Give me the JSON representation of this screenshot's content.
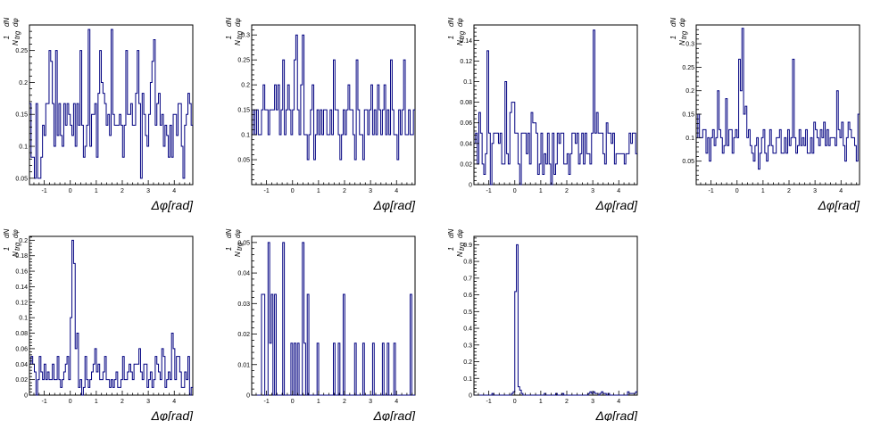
{
  "page": {
    "background": "#ffffff"
  },
  "style": {
    "line_color": "#000080",
    "axis_color": "#000000"
  },
  "axis_text": {
    "x_title": "Δφ[rad]",
    "y_one": "1",
    "y_dN": "dN",
    "y_N": "N",
    "y_trg": "trg",
    "y_dphi": "dφ"
  },
  "chart_data": [
    {
      "type": "histogram",
      "xlim": [
        -1.5708,
        4.7124
      ],
      "ylim": [
        0.04,
        0.29
      ],
      "xticks": [
        -1,
        0,
        1,
        2,
        3,
        4
      ],
      "yticks": [
        0.05,
        0.1,
        0.15,
        0.2,
        0.25
      ],
      "ytick_labels": [
        "0.05",
        "0.1",
        "0.15",
        "0.2",
        "0.25"
      ],
      "grid": false,
      "values": [
        0.167,
        0.083,
        0.083,
        0.05,
        0.167,
        0.05,
        0.05,
        0.083,
        0.133,
        0.117,
        0.167,
        0.167,
        0.25,
        0.233,
        0.167,
        0.1,
        0.25,
        0.117,
        0.167,
        0.117,
        0.1,
        0.167,
        0.133,
        0.167,
        0.15,
        0.133,
        0.117,
        0.167,
        0.1,
        0.167,
        0.133,
        0.25,
        0.133,
        0.083,
        0.1,
        0.133,
        0.283,
        0.1,
        0.15,
        0.15,
        0.167,
        0.083,
        0.183,
        0.25,
        0.2,
        0.183,
        0.167,
        0.133,
        0.15,
        0.117,
        0.283,
        0.15,
        0.133,
        0.133,
        0.133,
        0.15,
        0.133,
        0.083,
        0.133,
        0.25,
        0.15,
        0.15,
        0.167,
        0.133,
        0.133,
        0.183,
        0.25,
        0.167,
        0.05,
        0.183,
        0.15,
        0.117,
        0.1,
        0.15,
        0.2,
        0.233,
        0.267,
        0.133,
        0.167,
        0.183,
        0.133,
        0.15,
        0.1,
        0.133,
        0.117,
        0.083,
        0.133,
        0.083,
        0.15,
        0.15,
        0.117,
        0.167,
        0.167,
        0.1,
        0.05,
        0.133,
        0.15,
        0.183,
        0.167,
        0.133
      ]
    },
    {
      "type": "histogram",
      "xlim": [
        -1.5708,
        4.7124
      ],
      "ylim": [
        0.0,
        0.32
      ],
      "xticks": [
        -1,
        0,
        1,
        2,
        3,
        4
      ],
      "yticks": [
        0.05,
        0.1,
        0.15,
        0.2,
        0.25,
        0.3
      ],
      "ytick_labels": [
        "0.05",
        "0.1",
        "0.15",
        "0.2",
        "0.25",
        "0.3"
      ],
      "grid": false,
      "values": [
        0.1,
        0.15,
        0.1,
        0.15,
        0.1,
        0.1,
        0.15,
        0.2,
        0.15,
        0.15,
        0.1,
        0.15,
        0.15,
        0.15,
        0.2,
        0.15,
        0.2,
        0.1,
        0.15,
        0.25,
        0.1,
        0.15,
        0.2,
        0.15,
        0.1,
        0.15,
        0.25,
        0.3,
        0.15,
        0.1,
        0.2,
        0.3,
        0.1,
        0.1,
        0.05,
        0.1,
        0.15,
        0.2,
        0.05,
        0.1,
        0.15,
        0.1,
        0.15,
        0.1,
        0.15,
        0.15,
        0.1,
        0.1,
        0.15,
        0.1,
        0.25,
        0.15,
        0.15,
        0.1,
        0.05,
        0.1,
        0.15,
        0.1,
        0.15,
        0.2,
        0.15,
        0.15,
        0.1,
        0.05,
        0.25,
        0.15,
        0.1,
        0.1,
        0.05,
        0.15,
        0.15,
        0.1,
        0.15,
        0.2,
        0.1,
        0.15,
        0.1,
        0.2,
        0.15,
        0.1,
        0.15,
        0.2,
        0.1,
        0.15,
        0.1,
        0.25,
        0.15,
        0.1,
        0.1,
        0.05,
        0.15,
        0.1,
        0.15,
        0.25,
        0.1,
        0.1,
        0.15,
        0.1,
        0.1,
        0.15
      ]
    },
    {
      "type": "histogram",
      "xlim": [
        -1.5708,
        4.7124
      ],
      "ylim": [
        0.0,
        0.155
      ],
      "xticks": [
        -1,
        0,
        1,
        2,
        3,
        4
      ],
      "yticks": [
        0,
        0.02,
        0.04,
        0.06,
        0.08,
        0.1,
        0.12,
        0.14
      ],
      "ytick_labels": [
        "0",
        "0.02",
        "0.04",
        "0.06",
        "0.08",
        "0.1",
        "0.12",
        "0.14"
      ],
      "grid": false,
      "values": [
        0.04,
        0.05,
        0.02,
        0.07,
        0.05,
        0.02,
        0.01,
        0.03,
        0.13,
        0.05,
        0.0,
        0.04,
        0.05,
        0.05,
        0.05,
        0.04,
        0.05,
        0.02,
        0.02,
        0.1,
        0.03,
        0.02,
        0.07,
        0.08,
        0.08,
        0.05,
        0.05,
        0.02,
        0.0,
        0.05,
        0.05,
        0.05,
        0.03,
        0.05,
        0.02,
        0.07,
        0.06,
        0.06,
        0.05,
        0.01,
        0.02,
        0.05,
        0.01,
        0.03,
        0.02,
        0.05,
        0.02,
        0.0,
        0.05,
        0.01,
        0.02,
        0.05,
        0.04,
        0.05,
        0.05,
        0.02,
        0.02,
        0.03,
        0.01,
        0.03,
        0.05,
        0.05,
        0.04,
        0.05,
        0.02,
        0.03,
        0.05,
        0.02,
        0.05,
        0.03,
        0.03,
        0.02,
        0.05,
        0.15,
        0.05,
        0.07,
        0.05,
        0.05,
        0.05,
        0.03,
        0.02,
        0.06,
        0.05,
        0.05,
        0.04,
        0.05,
        0.02,
        0.03,
        0.03,
        0.03,
        0.03,
        0.03,
        0.02,
        0.03,
        0.03,
        0.05,
        0.04,
        0.05,
        0.05,
        0.03
      ]
    },
    {
      "type": "histogram",
      "xlim": [
        -1.5708,
        4.7124
      ],
      "ylim": [
        0.0,
        0.34
      ],
      "xticks": [
        -1,
        0,
        1,
        2,
        3,
        4
      ],
      "yticks": [
        0.05,
        0.1,
        0.15,
        0.2,
        0.25,
        0.3
      ],
      "ytick_labels": [
        "0.05",
        "0.1",
        "0.15",
        "0.2",
        "0.25",
        "0.3"
      ],
      "grid": false,
      "values": [
        0.1,
        0.15,
        0.1,
        0.1,
        0.117,
        0.117,
        0.067,
        0.1,
        0.05,
        0.1,
        0.117,
        0.083,
        0.1,
        0.2,
        0.117,
        0.1,
        0.067,
        0.083,
        0.183,
        0.083,
        0.117,
        0.117,
        0.067,
        0.1,
        0.117,
        0.1,
        0.267,
        0.2,
        0.333,
        0.15,
        0.167,
        0.1,
        0.117,
        0.083,
        0.067,
        0.05,
        0.083,
        0.1,
        0.033,
        0.067,
        0.1,
        0.117,
        0.067,
        0.05,
        0.083,
        0.117,
        0.083,
        0.067,
        0.067,
        0.1,
        0.1,
        0.117,
        0.067,
        0.067,
        0.1,
        0.067,
        0.117,
        0.083,
        0.1,
        0.267,
        0.1,
        0.067,
        0.083,
        0.117,
        0.083,
        0.1,
        0.083,
        0.117,
        0.067,
        0.067,
        0.1,
        0.067,
        0.133,
        0.117,
        0.1,
        0.083,
        0.117,
        0.1,
        0.133,
        0.083,
        0.117,
        0.083,
        0.1,
        0.1,
        0.1,
        0.083,
        0.2,
        0.117,
        0.1,
        0.133,
        0.083,
        0.05,
        0.1,
        0.133,
        0.117,
        0.1,
        0.1,
        0.083,
        0.05,
        0.15
      ]
    },
    {
      "type": "histogram",
      "xlim": [
        -1.5708,
        4.7124
      ],
      "ylim": [
        0.0,
        0.205
      ],
      "xticks": [
        -1,
        0,
        1,
        2,
        3,
        4
      ],
      "yticks": [
        0,
        0.02,
        0.04,
        0.06,
        0.08,
        0.1,
        0.12,
        0.14,
        0.16,
        0.18,
        0.2
      ],
      "ytick_labels": [
        "0",
        "0.02",
        "0.04",
        "0.06",
        "0.08",
        "0.1",
        "0.12",
        "0.14",
        "0.16",
        "0.18",
        "0.2"
      ],
      "grid": false,
      "values": [
        0.04,
        0.05,
        0.04,
        0.03,
        0.0,
        0.02,
        0.05,
        0.03,
        0.02,
        0.04,
        0.02,
        0.03,
        0.02,
        0.02,
        0.04,
        0.02,
        0.02,
        0.05,
        0.02,
        0.01,
        0.02,
        0.03,
        0.04,
        0.05,
        0.02,
        0.1,
        0.2,
        0.17,
        0.06,
        0.08,
        0.01,
        0.02,
        0.0,
        0.01,
        0.05,
        0.02,
        0.01,
        0.02,
        0.03,
        0.04,
        0.06,
        0.03,
        0.04,
        0.02,
        0.02,
        0.03,
        0.05,
        0.02,
        0.02,
        0.01,
        0.02,
        0.01,
        0.02,
        0.03,
        0.01,
        0.01,
        0.02,
        0.05,
        0.02,
        0.02,
        0.03,
        0.04,
        0.03,
        0.02,
        0.04,
        0.04,
        0.04,
        0.06,
        0.03,
        0.02,
        0.04,
        0.04,
        0.01,
        0.02,
        0.03,
        0.01,
        0.02,
        0.05,
        0.04,
        0.03,
        0.02,
        0.06,
        0.05,
        0.01,
        0.02,
        0.03,
        0.02,
        0.08,
        0.06,
        0.02,
        0.05,
        0.05,
        0.03,
        0.01,
        0.01,
        0.03,
        0.02,
        0.05,
        0.0,
        0.01
      ]
    },
    {
      "type": "histogram",
      "xlim": [
        -1.5708,
        4.7124
      ],
      "ylim": [
        0.0,
        0.052
      ],
      "xticks": [
        -1,
        0,
        1,
        2,
        3,
        4
      ],
      "yticks": [
        0,
        0.01,
        0.02,
        0.03,
        0.04,
        0.05
      ],
      "ytick_labels": [
        "0",
        "0.01",
        "0.02",
        "0.03",
        "0.04",
        "0.05"
      ],
      "grid": false,
      "values": [
        0.0,
        0.0,
        0.0,
        0.0,
        0.0,
        0.0,
        0.033,
        0.033,
        0.0,
        0.0,
        0.05,
        0.017,
        0.033,
        0.0,
        0.033,
        0.0,
        0.0,
        0.0,
        0.0,
        0.05,
        0.0,
        0.0,
        0.0,
        0.0,
        0.017,
        0.0,
        0.017,
        0.0,
        0.017,
        0.0,
        0.0,
        0.05,
        0.017,
        0.0,
        0.033,
        0.0,
        0.0,
        0.0,
        0.0,
        0.0,
        0.017,
        0.0,
        0.0,
        0.0,
        0.0,
        0.0,
        0.0,
        0.0,
        0.0,
        0.0,
        0.017,
        0.0,
        0.0,
        0.017,
        0.0,
        0.0,
        0.033,
        0.0,
        0.0,
        0.0,
        0.0,
        0.0,
        0.0,
        0.017,
        0.0,
        0.0,
        0.0,
        0.0,
        0.017,
        0.0,
        0.0,
        0.0,
        0.0,
        0.0,
        0.017,
        0.0,
        0.0,
        0.0,
        0.0,
        0.0,
        0.017,
        0.0,
        0.0,
        0.017,
        0.0,
        0.0,
        0.0,
        0.017,
        0.0,
        0.0,
        0.0,
        0.0,
        0.0,
        0.0,
        0.0,
        0.0,
        0.0,
        0.033,
        0.0,
        0.0
      ]
    },
    {
      "type": "histogram",
      "xlim": [
        -1.5708,
        4.7124
      ],
      "ylim": [
        0.0,
        0.95
      ],
      "xticks": [
        -1,
        0,
        1,
        2,
        3,
        4
      ],
      "yticks": [
        0,
        0.1,
        0.2,
        0.3,
        0.4,
        0.5,
        0.6,
        0.7,
        0.8,
        0.9
      ],
      "ytick_labels": [
        "0",
        "0.1",
        "0.2",
        "0.3",
        "0.4",
        "0.5",
        "0.6",
        "0.7",
        "0.8",
        "0.9"
      ],
      "grid": false,
      "values": [
        0,
        0,
        0,
        0,
        0,
        0,
        0,
        0,
        0,
        0,
        0,
        0.01,
        0,
        0,
        0,
        0,
        0,
        0,
        0,
        0,
        0,
        0,
        0,
        0.01,
        0.02,
        0.62,
        0.9,
        0.05,
        0.03,
        0.01,
        0,
        0,
        0,
        0,
        0,
        0,
        0,
        0,
        0,
        0,
        0,
        0,
        0,
        0.01,
        0,
        0,
        0,
        0,
        0,
        0,
        0.01,
        0,
        0,
        0,
        0.01,
        0,
        0,
        0,
        0,
        0,
        0,
        0,
        0,
        0,
        0,
        0,
        0,
        0,
        0,
        0,
        0.01,
        0.02,
        0.01,
        0.02,
        0.01,
        0.01,
        0,
        0.01,
        0.02,
        0.01,
        0.01,
        0,
        0.01,
        0,
        0,
        0,
        0,
        0,
        0,
        0,
        0,
        0,
        0,
        0,
        0.02,
        0.01,
        0.01,
        0.01,
        0.01,
        0.02
      ]
    }
  ]
}
